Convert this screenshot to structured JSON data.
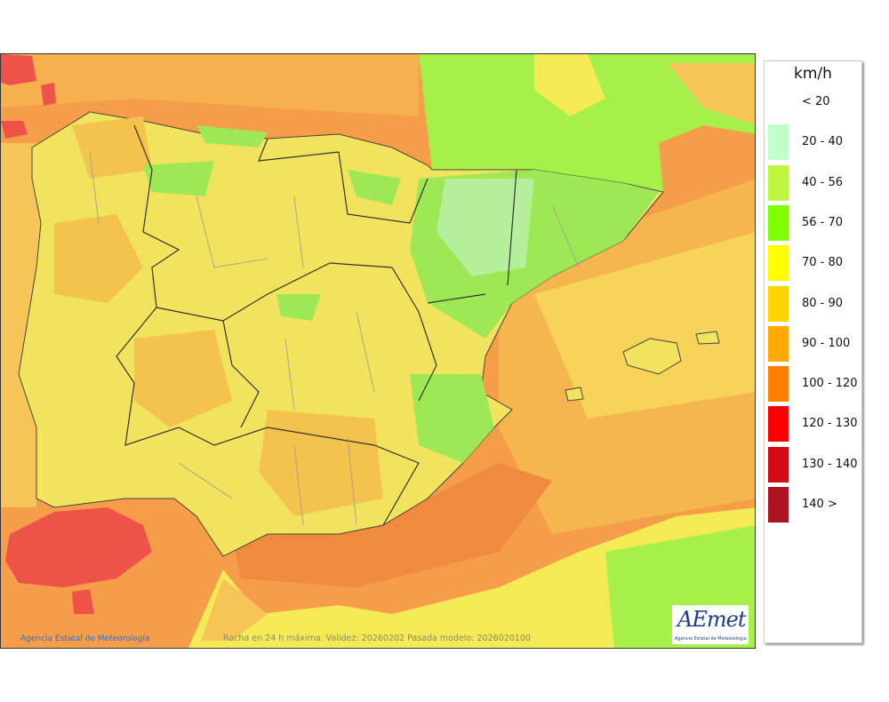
{
  "map": {
    "credit": "Agencia Estatal de Meteorología",
    "caption": "Racha en 24 h máxima. Validez: 20260202 Pasada modelo: 2026020100",
    "logo_text": "AEmet",
    "logo_subtitle": "Agencia Estatal de Meteorología"
  },
  "legend": {
    "unit": "km/h",
    "items": [
      {
        "label": "< 20",
        "color": null
      },
      {
        "label": "20 - 40",
        "color": "#c0ffc8"
      },
      {
        "label": "40 - 56",
        "color": "#bff53c"
      },
      {
        "label": "56 - 70",
        "color": "#80ff00"
      },
      {
        "label": "70 - 80",
        "color": "#ffff00"
      },
      {
        "label": "80 - 90",
        "color": "#ffd400"
      },
      {
        "label": "90 - 100",
        "color": "#ffaa00"
      },
      {
        "label": "100 - 120",
        "color": "#ff8000"
      },
      {
        "label": "120 - 130",
        "color": "#ff0000"
      },
      {
        "label": "130 - 140",
        "color": "#d40a14"
      },
      {
        "label": "140 >",
        "color": "#ab1420"
      }
    ]
  }
}
